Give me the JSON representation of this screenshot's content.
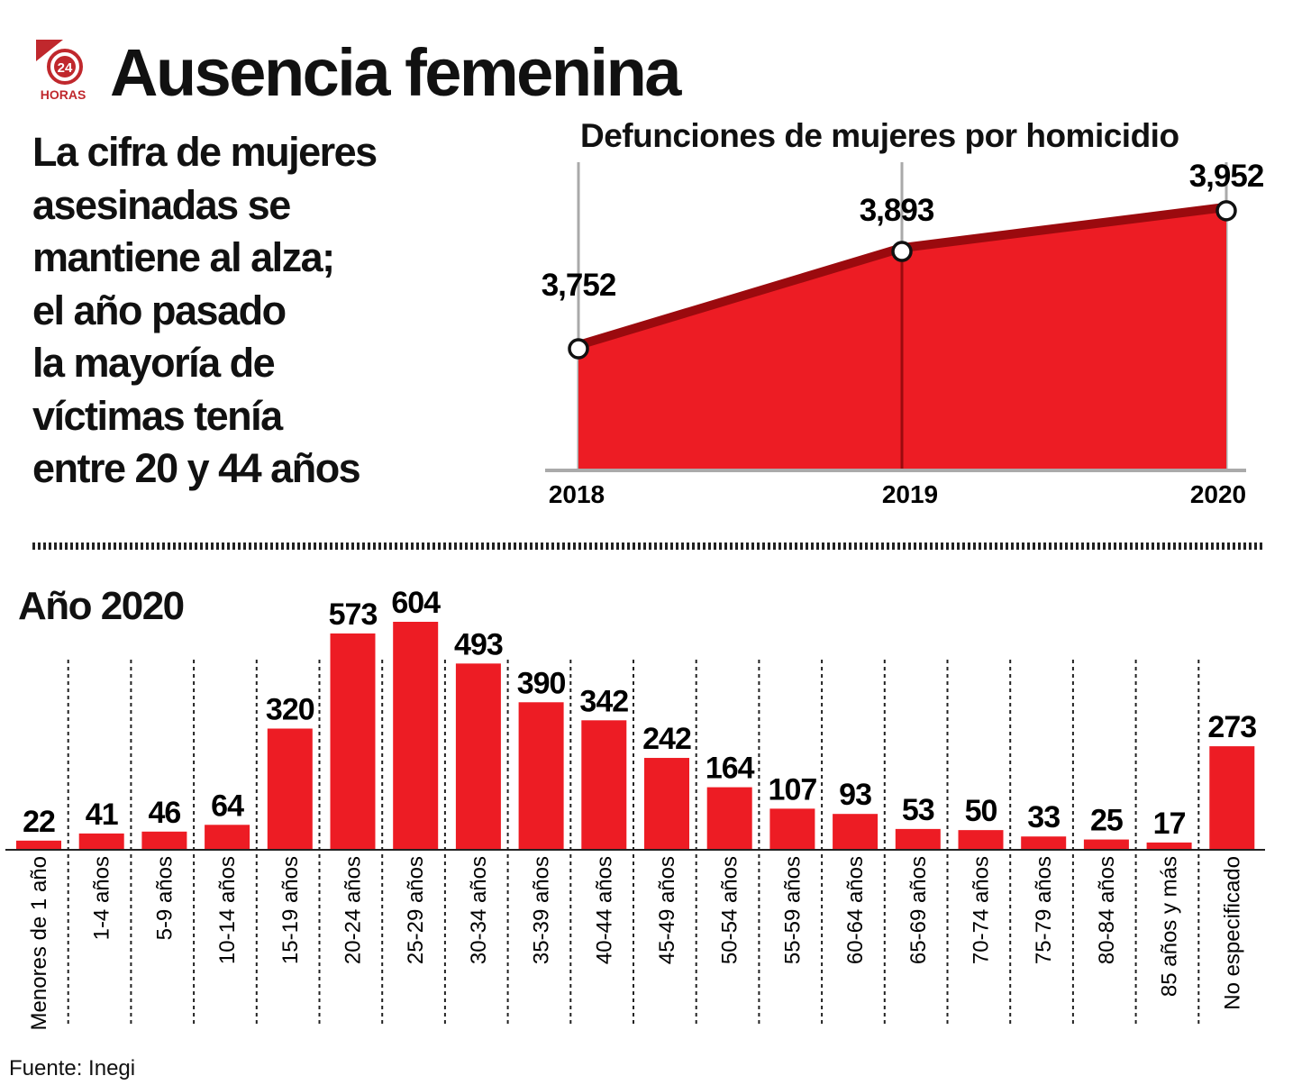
{
  "header": {
    "title": "Ausencia femenina",
    "logo_text": "24 HORAS"
  },
  "lead": {
    "lines": [
      "La cifra de mujeres",
      "asesinadas se",
      "mantiene al alza;",
      "el año pasado",
      "la mayoría de",
      "víctimas tenía",
      "entre 20 y 44 años"
    ]
  },
  "footer": {
    "source": "Fuente: Inegi"
  },
  "colors": {
    "fill": "#ed1c24",
    "line": "#9b0a0e",
    "axis": "#aaaaaa"
  },
  "chart_data": [
    {
      "type": "area",
      "title": "Defunciones de mujeres por homicidio",
      "x": [
        "2018",
        "2019",
        "2020"
      ],
      "values": [
        3752,
        3893,
        3952
      ],
      "labels": [
        "3,752",
        "3,893",
        "3,952"
      ],
      "ylim": [
        3577,
        4000
      ],
      "grid": false
    },
    {
      "type": "bar",
      "title": "Año 2020",
      "categories": [
        "Menores de 1 año",
        "1-4 años",
        "5-9 años",
        "10-14 años",
        "15-19 años",
        "20-24 años",
        "25-29 años",
        "30-34 años",
        "35-39 años",
        "40-44 años",
        "45-49 años",
        "50-54 años",
        "55-59 años",
        "60-64 años",
        "65-69 años",
        "70-74 años",
        "75-79 años",
        "80-84 años",
        "85 años y más",
        "No especificado"
      ],
      "values": [
        22,
        41,
        46,
        64,
        320,
        573,
        604,
        493,
        390,
        342,
        242,
        164,
        107,
        93,
        53,
        50,
        33,
        25,
        17,
        273
      ],
      "ylim": [
        0,
        604
      ]
    }
  ]
}
